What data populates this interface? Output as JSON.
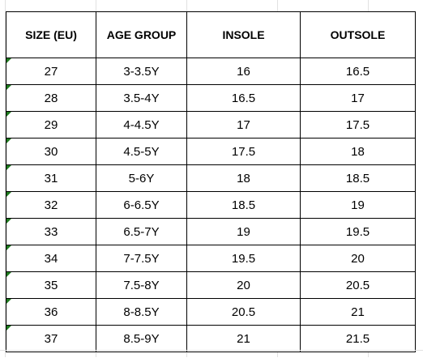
{
  "table": {
    "headers": {
      "size": "SIZE (EU)",
      "age": "AGE GROUP",
      "insole": "INSOLE",
      "outsole": "OUTSOLE"
    },
    "rows": [
      {
        "size": "27",
        "age": "3-3.5Y",
        "insole": "16",
        "outsole": "16.5"
      },
      {
        "size": "28",
        "age": "3.5-4Y",
        "insole": "16.5",
        "outsole": "17"
      },
      {
        "size": "29",
        "age": "4-4.5Y",
        "insole": "17",
        "outsole": "17.5"
      },
      {
        "size": "30",
        "age": "4.5-5Y",
        "insole": "17.5",
        "outsole": "18"
      },
      {
        "size": "31",
        "age": "5-6Y",
        "insole": "18",
        "outsole": "18.5"
      },
      {
        "size": "32",
        "age": "6-6.5Y",
        "insole": "18.5",
        "outsole": "19"
      },
      {
        "size": "33",
        "age": "6.5-7Y",
        "insole": "19",
        "outsole": "19.5"
      },
      {
        "size": "34",
        "age": "7-7.5Y",
        "insole": "19.5",
        "outsole": "20"
      },
      {
        "size": "35",
        "age": "7.5-8Y",
        "insole": "20",
        "outsole": "20.5"
      },
      {
        "size": "36",
        "age": "8-8.5Y",
        "insole": "20.5",
        "outsole": "21"
      },
      {
        "size": "37",
        "age": "8.5-9Y",
        "insole": "21",
        "outsole": "21.5"
      }
    ]
  },
  "colors": {
    "border": "#000000",
    "gridline": "#e1e1e1",
    "flag": "#1e7a1e"
  },
  "icons": {
    "cell_flag": "green-triangle-error-indicator"
  }
}
